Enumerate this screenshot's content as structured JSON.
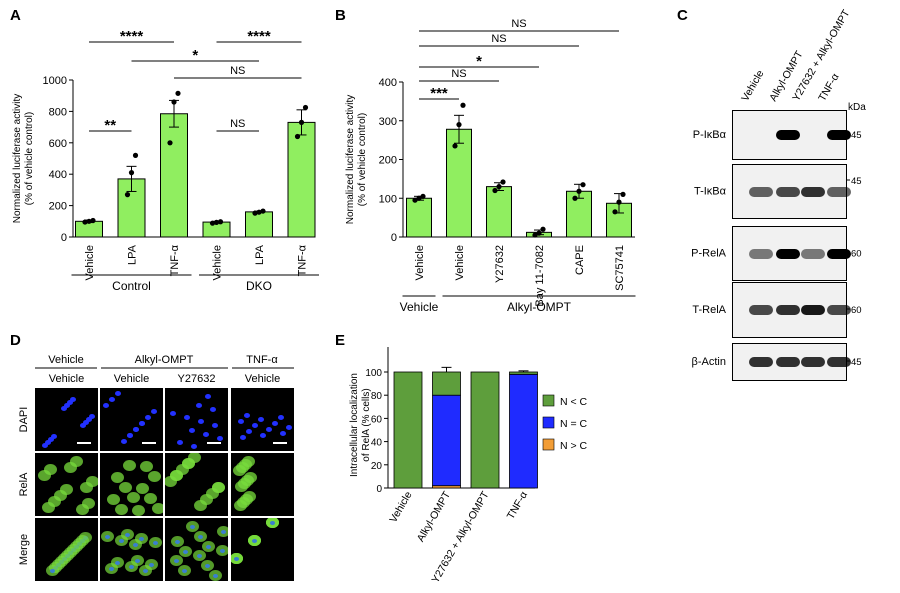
{
  "panel_letters": {
    "a": "A",
    "b": "B",
    "c": "C",
    "d": "D",
    "e": "E"
  },
  "significance": {
    "ns": "NS",
    "s1": "*",
    "s2": "**",
    "s3": "***",
    "s4": "****"
  },
  "chart_data": [
    {
      "id": "A",
      "type": "bar",
      "ylabel": "Normalized luciferase activity\n(% of vehicle control)",
      "ylim": [
        0,
        1000
      ],
      "yticks": [
        0,
        200,
        400,
        600,
        800,
        1000
      ],
      "categories": [
        "Vehicle",
        "LPA",
        "TNF-α",
        "Vehicle",
        "LPA",
        "TNF-α"
      ],
      "groups": [
        {
          "label": "Control",
          "members": [
            0,
            1,
            2
          ]
        },
        {
          "label": "DKO",
          "members": [
            3,
            4,
            5
          ]
        }
      ],
      "values": [
        100,
        370,
        785,
        95,
        160,
        730
      ],
      "errors": [
        8,
        80,
        85,
        5,
        5,
        80
      ],
      "points": [
        [
          95,
          100,
          105
        ],
        [
          270,
          410,
          520
        ],
        [
          600,
          860,
          915
        ],
        [
          88,
          93,
          97
        ],
        [
          152,
          158,
          165
        ],
        [
          640,
          730,
          825
        ]
      ],
      "bar_color": "#90ee60",
      "comparisons": [
        {
          "a": 0,
          "b": 1,
          "label": "**"
        },
        {
          "a": 0,
          "b": 2,
          "label": "****"
        },
        {
          "a": 1,
          "b": 4,
          "label": "*"
        },
        {
          "a": 3,
          "b": 4,
          "label": "NS"
        },
        {
          "a": 3,
          "b": 5,
          "label": "****"
        },
        {
          "a": 2,
          "b": 5,
          "label": "NS"
        }
      ]
    },
    {
      "id": "B",
      "type": "bar",
      "ylabel": "Normalized luciferase activity\n(% of vehicle control)",
      "ylim": [
        0,
        400
      ],
      "yticks": [
        0,
        100,
        200,
        300,
        400
      ],
      "categories": [
        "Vehicle",
        "Vehicle",
        "Y27632",
        "Bay 11-7082",
        "CAPE",
        "SC75741"
      ],
      "groups": [
        {
          "label": "Vehicle",
          "members": [
            0
          ]
        },
        {
          "label": "Alkyl-OMPT",
          "members": [
            1,
            2,
            3,
            4,
            5
          ]
        }
      ],
      "values": [
        100,
        278,
        130,
        12,
        118,
        87
      ],
      "errors": [
        5,
        36,
        10,
        6,
        18,
        25
      ],
      "points": [
        [
          95,
          100,
          105
        ],
        [
          235,
          290,
          340
        ],
        [
          120,
          130,
          142
        ],
        [
          5,
          10,
          20
        ],
        [
          100,
          118,
          135
        ],
        [
          65,
          90,
          110
        ]
      ],
      "bar_color": "#90ee60",
      "comparisons": [
        {
          "a": 0,
          "b": 1,
          "label": "***"
        },
        {
          "a": 0,
          "b": 2,
          "label": "NS"
        },
        {
          "a": 0,
          "b": 3,
          "label": "*"
        },
        {
          "a": 0,
          "b": 4,
          "label": "NS"
        },
        {
          "a": 0,
          "b": 5,
          "label": "NS"
        }
      ]
    },
    {
      "id": "E",
      "type": "bar",
      "stacked": true,
      "ylabel": "Intracellular localization\nof RelA (% cells)",
      "ylim": [
        0,
        100
      ],
      "yticks": [
        0,
        20,
        40,
        60,
        80,
        100
      ],
      "categories": [
        "Vehicle",
        "Alkyl-OMPT",
        "Y27632 + Alkyl-OMPT",
        "TNF-α"
      ],
      "series": [
        {
          "name": "N > C",
          "color": "#f29d36",
          "values": [
            0,
            2,
            0,
            0
          ]
        },
        {
          "name": "N = C",
          "color": "#1f2bff",
          "values": [
            0,
            78,
            0,
            98
          ]
        },
        {
          "name": "N < C",
          "color": "#5e9e3c",
          "values": [
            100,
            20,
            100,
            2
          ]
        }
      ],
      "errors": {
        "N > C": [
          0,
          1,
          0,
          0
        ],
        "N = C": [
          0,
          4,
          0,
          0
        ],
        "N < C": [
          0,
          4,
          0,
          1
        ]
      },
      "legend_placement": "right"
    }
  ],
  "blot": {
    "lanes": [
      "Vehicle",
      "Alkyl-OMPT",
      "Y27632 + Alkyl-OMPT",
      "TNF-α"
    ],
    "unit": "kDa",
    "rows": [
      {
        "label": "P-IκBα",
        "markers": [
          "45"
        ]
      },
      {
        "label": "T-IκBα",
        "markers": [
          "45"
        ]
      },
      {
        "label": "P-RelA",
        "markers": [
          "60"
        ]
      },
      {
        "label": "T-RelA",
        "markers": [
          "60"
        ]
      },
      {
        "label": "β-Actin",
        "markers": [
          "45"
        ]
      }
    ]
  },
  "micrographs": {
    "header_row1": [
      "Vehicle",
      "Alkyl-OMPT",
      "TNF-α"
    ],
    "header_row2": [
      "Vehicle",
      "Vehicle",
      "Y27632",
      "Vehicle"
    ],
    "rows": [
      {
        "label": "DAPI",
        "color": "#1e2bd6"
      },
      {
        "label": "RelA",
        "color": "#4caf2a"
      },
      {
        "label": "Merge",
        "color": "#000000"
      }
    ]
  }
}
